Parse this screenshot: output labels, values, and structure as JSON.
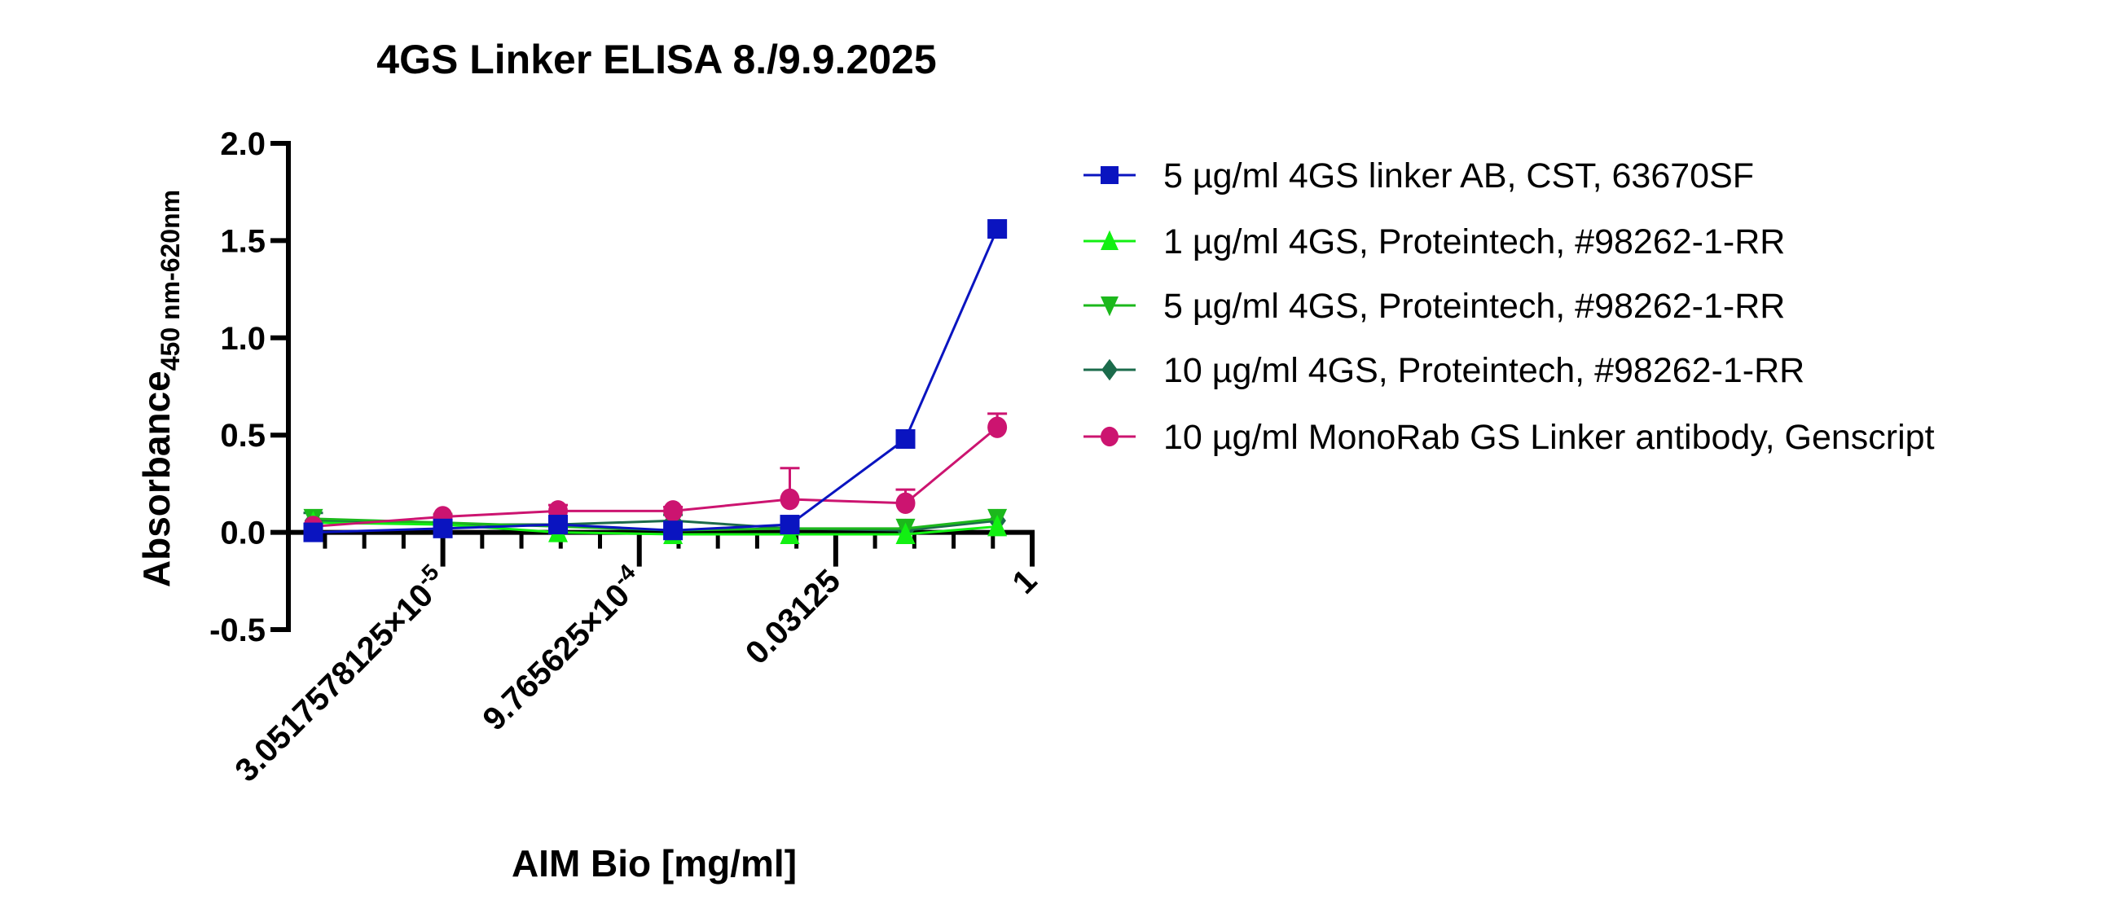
{
  "chart_data": {
    "type": "line",
    "title": "4GS Linker ELISA 8./9.9.2025",
    "xlabel": "AIM Bio [mg/ml]",
    "ylabel": "Absorbance",
    "ylabel_sub": "450 nm-620nm",
    "xscale": "log2",
    "xlim": [
      2e-06,
      1
    ],
    "ylim": [
      -0.5,
      2.0
    ],
    "yticks": [
      "-0.5",
      "0.0",
      "0.5",
      "1.0",
      "1.5",
      "2.0"
    ],
    "ytick_values": [
      -0.5,
      0.0,
      0.5,
      1.0,
      1.5,
      2.0
    ],
    "xticks": [
      {
        "value": 3.0517578125e-05,
        "base": "3.0517578125×10",
        "exp": "-5"
      },
      {
        "value": 0.0009765625,
        "base": "9.765625×10",
        "exp": "-4"
      },
      {
        "value": 0.03125,
        "base": "0.03125",
        "exp": ""
      },
      {
        "value": 1,
        "base": "1",
        "exp": ""
      }
    ],
    "legend_position": "right",
    "x": [
      3.1e-06,
      3.05e-05,
      0.000233,
      0.00177,
      0.0139,
      0.107,
      0.54
    ],
    "series": [
      {
        "name": "5 µg/ml 4GS linker AB, CST, 63670SF",
        "color": "#0a14c0",
        "marker": "square",
        "values": [
          0.0,
          0.02,
          0.04,
          0.01,
          0.04,
          0.48,
          1.56
        ],
        "error_upper": [
          null,
          null,
          null,
          null,
          null,
          null,
          null
        ]
      },
      {
        "name": "1 µg/ml 4GS, Proteintech, #98262-1-RR",
        "color": "#12f012",
        "marker": "triangle-up",
        "values": [
          0.05,
          0.04,
          0.0,
          -0.01,
          -0.01,
          -0.01,
          0.03
        ],
        "error_upper": [
          null,
          null,
          null,
          null,
          null,
          null,
          null
        ]
      },
      {
        "name": "5 µg/ml 4GS, Proteintech, #98262-1-RR",
        "color": "#1cb81c",
        "marker": "triangle-down",
        "values": [
          0.07,
          0.05,
          0.03,
          0.01,
          0.02,
          0.02,
          0.07
        ],
        "error_upper": [
          null,
          null,
          null,
          null,
          null,
          null,
          null
        ]
      },
      {
        "name": "10 µg/ml 4GS, Proteintech, #98262-1-RR",
        "color": "#1b6b4b",
        "marker": "diamond",
        "values": [
          0.06,
          0.04,
          0.04,
          0.06,
          0.02,
          0.01,
          0.06
        ],
        "error_upper": [
          0.1,
          null,
          null,
          0.09,
          null,
          null,
          null
        ]
      },
      {
        "name": "10 µg/ml MonoRab GS Linker antibody, Genscript",
        "color": "#cc1470",
        "marker": "circle",
        "values": [
          0.03,
          0.08,
          0.11,
          0.11,
          0.17,
          0.15,
          0.54
        ],
        "error_upper": [
          null,
          0.09,
          0.14,
          0.13,
          0.33,
          0.22,
          0.61
        ]
      }
    ]
  }
}
